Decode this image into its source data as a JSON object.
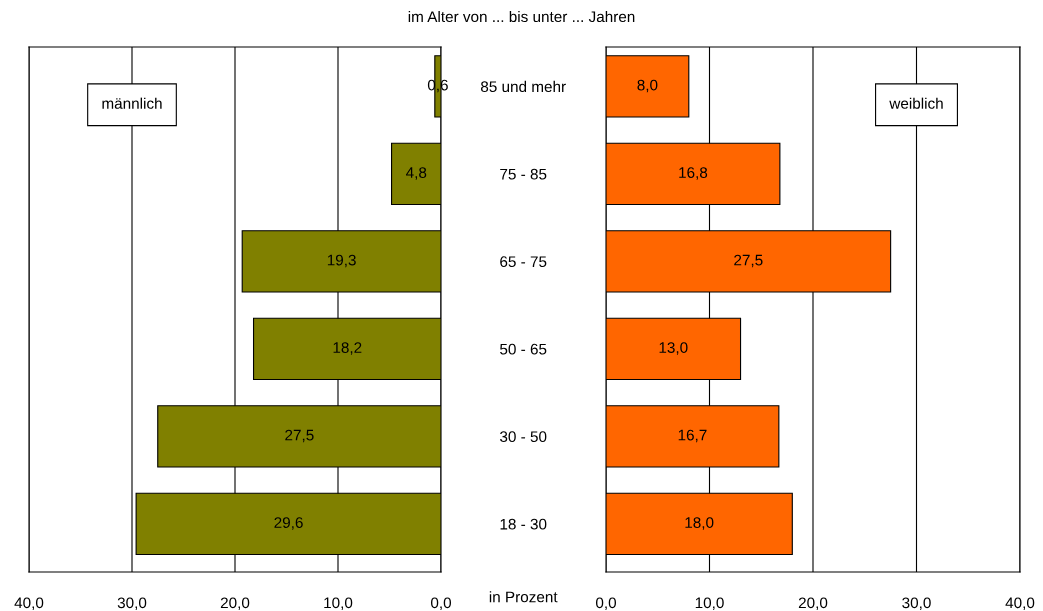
{
  "chart_data": [
    {
      "type": "bar",
      "orientation": "horizontal",
      "title": "im Alter von ... bis unter ... Jahren",
      "categories": [
        null,
        null,
        null,
        null,
        null,
        null
      ],
      "values": [
        0.6,
        4.8,
        19.3,
        18.2,
        27.5,
        29.6
      ],
      "color": "#808000",
      "value_labels": [
        "0,6",
        "4,8",
        "19,3",
        "18,2",
        "27,5",
        "29,6"
      ],
      "xlim": [
        40,
        0
      ],
      "xticks": [
        {
          "value": 40,
          "label": "40,0"
        },
        {
          "value": 30,
          "label": "30,0"
        },
        {
          "value": 20,
          "label": "20,0"
        },
        {
          "value": 10,
          "label": "10,0"
        },
        {
          "value": 0,
          "label": "0,0"
        }
      ],
      "grid": "x",
      "tick_labels": "x",
      "annotations": [
        "männlich"
      ]
    },
    {
      "type": "bar",
      "orientation": "horizontal",
      "xlabel": "in Prozent",
      "categories": [
        "85 und mehr",
        "75 - 85",
        "65 - 75",
        "50 - 65",
        "30 - 50",
        "18 - 30"
      ],
      "values": [
        8.0,
        16.8,
        27.5,
        13.0,
        16.7,
        18.0
      ],
      "color": "#ff6600",
      "value_labels": [
        "8,0",
        "16,8",
        "27,5",
        "13,0",
        "16,7",
        "18,0"
      ],
      "xlim": [
        0,
        40
      ],
      "xticks": [
        {
          "value": 0,
          "label": "0,0"
        },
        {
          "value": 10,
          "label": "10,0"
        },
        {
          "value": 20,
          "label": "20,0"
        },
        {
          "value": 30,
          "label": "30,0"
        },
        {
          "value": 40,
          "label": "40,0"
        }
      ],
      "grid": "x",
      "annotations": [
        "weiblich"
      ]
    }
  ]
}
